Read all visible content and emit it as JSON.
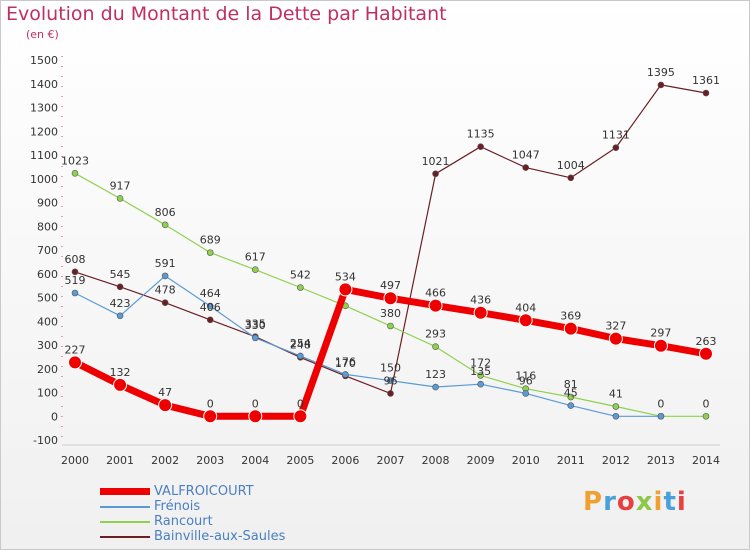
{
  "title": "Evolution du Montant de la Dette par Habitant",
  "unit": "(en €)",
  "logo": "Proxiti",
  "logo_colors": [
    "#f0a030",
    "#4aa0d8",
    "#e84040",
    "#8cc84a"
  ],
  "chart_data": {
    "type": "line",
    "title": "Evolution du Montant de la Dette par Habitant",
    "subtitle": "(en €)",
    "xlabel": "",
    "ylabel": "",
    "x": [
      "2000",
      "2001",
      "2002",
      "2003",
      "2004",
      "2005",
      "2006",
      "2007",
      "2008",
      "2009",
      "2010",
      "2011",
      "2012",
      "2013",
      "2014"
    ],
    "ylim": [
      -100,
      1500
    ],
    "yticks": [
      -100,
      0,
      100,
      200,
      300,
      400,
      500,
      600,
      700,
      800,
      900,
      1000,
      1100,
      1200,
      1300,
      1400,
      1500
    ],
    "grid": false,
    "legend_position": "bottom-left",
    "series": [
      {
        "name": "VALFROICOURT",
        "color": "#ee0000",
        "values": [
          227,
          132,
          47,
          0,
          0,
          0,
          534,
          497,
          466,
          436,
          404,
          369,
          327,
          297,
          263
        ]
      },
      {
        "name": "Frénois",
        "color": "#5b9bd5",
        "values": [
          519,
          423,
          591,
          464,
          330,
          254,
          176,
          150,
          123,
          135,
          96,
          45,
          0,
          0,
          null
        ]
      },
      {
        "name": "Rancourt",
        "color": "#8fd14f",
        "values": [
          1023,
          917,
          806,
          689,
          617,
          542,
          465,
          380,
          293,
          172,
          116,
          81,
          41,
          0,
          0
        ]
      },
      {
        "name": "Bainville-aux-Saules",
        "color": "#6b1f24",
        "values": [
          608,
          545,
          478,
          406,
          335,
          248,
          170,
          96,
          1021,
          1135,
          1047,
          1004,
          1131,
          1395,
          1361
        ]
      }
    ],
    "data_labels": [
      {
        "series": "VALFROICOURT",
        "values": [
          "227",
          "132",
          "47",
          "0",
          "0",
          "0",
          "534",
          "497",
          "466",
          "436",
          "404",
          "369",
          "327",
          "297",
          "263"
        ]
      },
      {
        "series": "Frénois",
        "values": [
          "519",
          "423",
          "591",
          "464",
          "330",
          "254",
          "176",
          "150",
          "123",
          "135",
          "96",
          "45",
          "",
          "",
          ""
        ]
      },
      {
        "series": "Rancourt",
        "values": [
          "1023",
          "917",
          "806",
          "689",
          "617",
          "542",
          "",
          "380",
          "293",
          "172",
          "116",
          "81",
          "41",
          "0",
          "0"
        ]
      },
      {
        "series": "Bainville-aux-Saules",
        "values": [
          "608",
          "545",
          "478",
          "406",
          "335",
          "248",
          "170",
          "96",
          "1021",
          "1135",
          "1047",
          "1004",
          "1131",
          "1395",
          "1361"
        ]
      }
    ]
  }
}
